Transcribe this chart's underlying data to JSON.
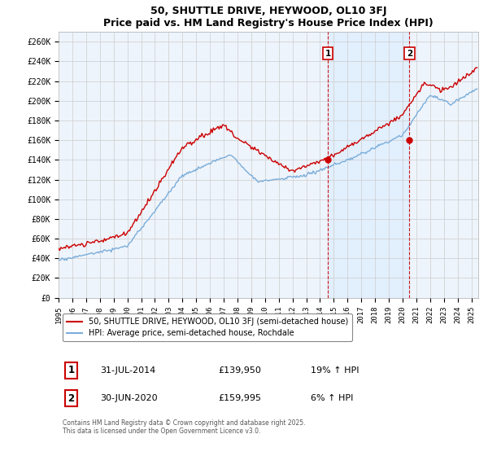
{
  "title": "50, SHUTTLE DRIVE, HEYWOOD, OL10 3FJ",
  "subtitle": "Price paid vs. HM Land Registry's House Price Index (HPI)",
  "ylabel_values": [
    "£0",
    "£20K",
    "£40K",
    "£60K",
    "£80K",
    "£100K",
    "£120K",
    "£140K",
    "£160K",
    "£180K",
    "£200K",
    "£220K",
    "£240K",
    "£260K"
  ],
  "yticks": [
    0,
    20000,
    40000,
    60000,
    80000,
    100000,
    120000,
    140000,
    160000,
    180000,
    200000,
    220000,
    240000,
    260000
  ],
  "ylim": [
    0,
    270000
  ],
  "xlim_start": 1995.0,
  "xlim_end": 2025.5,
  "grid_color": "#cccccc",
  "background_color": "#ffffff",
  "plot_bg_color": "#eef4fb",
  "hpi_color": "#7aadda",
  "price_color": "#cc0000",
  "shade_color": "#ddeeff",
  "transaction1_date": 2014.58,
  "transaction1_price": 139950,
  "transaction2_date": 2020.5,
  "transaction2_price": 159995,
  "legend_line1": "50, SHUTTLE DRIVE, HEYWOOD, OL10 3FJ (semi-detached house)",
  "legend_line2": "HPI: Average price, semi-detached house, Rochdale",
  "annotation1_date": "31-JUL-2014",
  "annotation1_price": "£139,950",
  "annotation1_hpi": "19% ↑ HPI",
  "annotation2_date": "30-JUN-2020",
  "annotation2_price": "£159,995",
  "annotation2_hpi": "6% ↑ HPI",
  "footnote": "Contains HM Land Registry data © Crown copyright and database right 2025.\nThis data is licensed under the Open Government Licence v3.0."
}
